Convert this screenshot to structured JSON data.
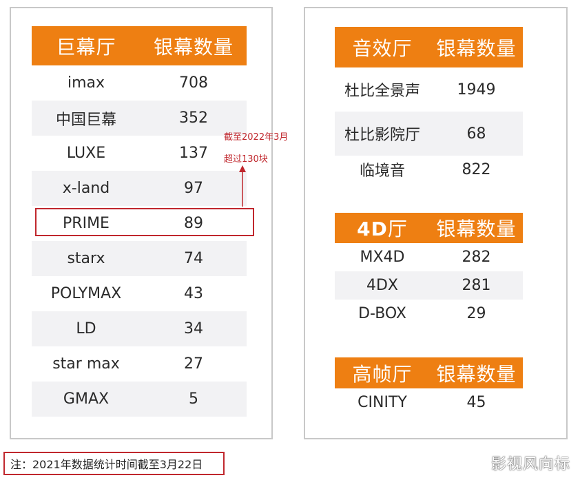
{
  "left_table": {
    "header": [
      "巨幕厅",
      "银幕数量"
    ],
    "rows": [
      [
        "imax",
        "708"
      ],
      [
        "中国巨幕",
        "352"
      ],
      [
        "LUXE",
        "137"
      ],
      [
        "x-land",
        "97"
      ],
      [
        "PRIME",
        "89"
      ],
      [
        "starx",
        "74"
      ],
      [
        "POLYMAX",
        "43"
      ],
      [
        "LD",
        "34"
      ],
      [
        "star max",
        "27"
      ],
      [
        "GMAX",
        "5"
      ]
    ]
  },
  "sound_table": {
    "header": [
      "音效厅",
      "银幕数量"
    ],
    "rows": [
      [
        "杜比全景声",
        "1949"
      ],
      [
        "杜比影院厅",
        "68"
      ],
      [
        "临境音",
        "822"
      ]
    ]
  },
  "fourd_table": {
    "header_bold": "4D",
    "header_rest": "厅",
    "header2": "银幕数量",
    "rows": [
      [
        "MX4D",
        "282"
      ],
      [
        "4DX",
        "281"
      ],
      [
        "D-BOX",
        "29"
      ]
    ]
  },
  "hfr_table": {
    "header": [
      "高帧厅",
      "银幕数量"
    ],
    "rows": [
      [
        "CINITY",
        "45"
      ]
    ]
  },
  "annotation": {
    "line1": "截至2022年3月",
    "line2": "超过130块"
  },
  "note": "注：2021年数据统计时间截至3月22日",
  "watermark": "影视风向标",
  "colors": {
    "header_bg": "#ee7f12",
    "highlight": "#c0272d",
    "row_shade": "#f2f2f4"
  }
}
